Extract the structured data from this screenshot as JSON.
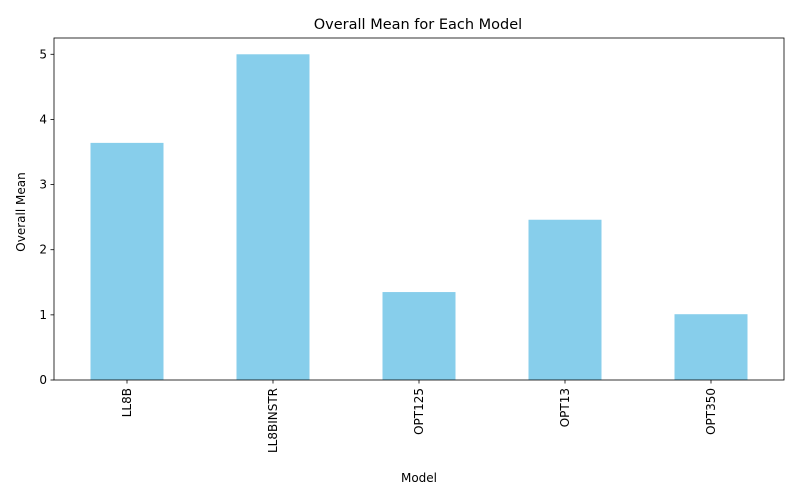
{
  "chart_data": {
    "type": "bar",
    "title": "Overall Mean for Each Model",
    "xlabel": "Model",
    "ylabel": "Overall Mean",
    "categories": [
      "LL8B",
      "LL8BINSTR",
      "OPT125",
      "OPT13",
      "OPT350"
    ],
    "values": [
      3.64,
      5.0,
      1.35,
      2.46,
      1.01
    ],
    "ylim": [
      0,
      5.25
    ],
    "yticks": [
      0,
      1,
      2,
      3,
      4,
      5
    ],
    "bar_color": "#87ceeb",
    "grid": false,
    "legend": "none",
    "x_tick_rotation": "vertical"
  }
}
